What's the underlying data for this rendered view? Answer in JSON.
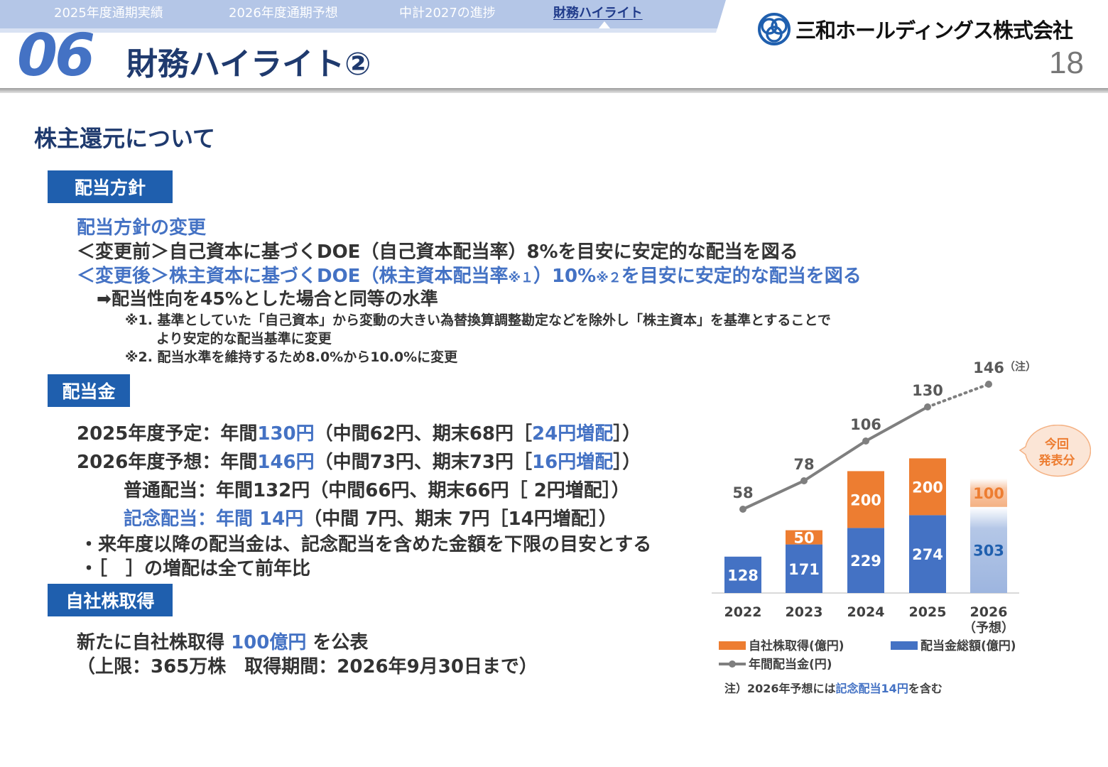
{
  "header": {
    "nav_tabs": [
      {
        "label": "2025年度通期実績"
      },
      {
        "label": "2026年度通期予想"
      },
      {
        "label": "中計2027の進捗"
      },
      {
        "label": "財務ハイライト"
      }
    ],
    "section_number": "06",
    "title": "財務ハイライト②",
    "company_name": "三和ホールディングス株式会社",
    "page_number": "18",
    "colors": {
      "navy": "#1f3a6e",
      "accent_blue": "#4472c4",
      "label_bg": "#1f5fae",
      "orange": "#ed7d31"
    }
  },
  "section_heading": "株主還元について",
  "dividend_policy": {
    "label": "配当方針",
    "change_title": "配当方針の変更",
    "before": "＜変更前＞自己資本に基づくDOE（自己資本配当率）8%を目安に安定的な配当を図る",
    "after_a": "＜変更後＞株主資本に基づくDOE（株主資本配当率",
    "after_note1": "※１",
    "after_b": "）10%",
    "after_note2": "※２",
    "after_c": "を目安に安定的な配当を図る",
    "equivalent": "➡配当性向を45%とした場合と同等の水準",
    "note1_line1": "※1. 基準としていた「自己資本」から変動の大きい為替換算調整勘定などを除外し「株主資本」を基準とすることで",
    "note1_line2": "より安定的な配当基準に変更",
    "note2": "※2. 配当水準を維持するため8.0%から10.0%に変更"
  },
  "dividend": {
    "label": "配当金",
    "line1": {
      "a": "2025年度予定：年間",
      "b": "130円",
      "c": "（中間62円、期末68円［",
      "d": "24円増配",
      "e": "］）"
    },
    "line2": {
      "a": "2026年度予想：年間",
      "b": "146円",
      "c": "（中間73円、期末73円［",
      "d": "16円増配",
      "e": "］）"
    },
    "line3": "普通配当：年間132円（中間66円、期末66円［  2円増配］）",
    "line4": {
      "a": "記念配当：年間  14円",
      "b": "（中間  7円、期末  7円［14円増配］）"
    },
    "bullet1": "・来年度以降の配当金は、記念配当を含めた金額を下限の目安とする",
    "bullet2": "・［　］の増配は全て前年比"
  },
  "buyback": {
    "label": "自社株取得",
    "line1_a": "新たに自社株取得 ",
    "line1_b": "100億円",
    "line1_c": " を公表",
    "line2": "（上限：365万株　取得期間：2026年9月30日まで）"
  },
  "chart_data": {
    "type": "bar",
    "categories": [
      "2022",
      "2023",
      "2024",
      "2025",
      "2026"
    ],
    "category_sublabels": [
      "",
      "",
      "",
      "",
      "（予想）"
    ],
    "stacked": true,
    "series": [
      {
        "name": "配当金総額(億円)",
        "values": [
          128,
          171,
          229,
          274,
          303
        ],
        "color": "#4472c4"
      },
      {
        "name": "自社株取得(億円)",
        "values": [
          0,
          50,
          200,
          200,
          100
        ],
        "color": "#ed7d31"
      }
    ],
    "line_series": {
      "name": "年間配当金(円)",
      "values": [
        58,
        78,
        106,
        130,
        146
      ],
      "color": "#7f7f7f",
      "dotted_last_segment": true
    },
    "line_annotations": {
      "last_note": "（注）"
    },
    "forecast_column": "2026",
    "callout": "今回発表分",
    "callout_lines": [
      "今回",
      "発表分"
    ],
    "footnote_a": "注）2026年予想には",
    "footnote_b": "記念配当14円",
    "footnote_c": "を含む",
    "legend_placement": "bottom",
    "grid": false
  }
}
